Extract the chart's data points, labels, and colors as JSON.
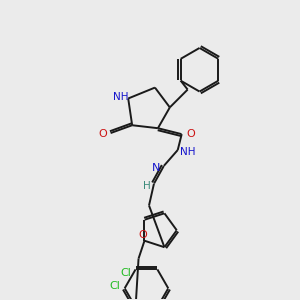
{
  "background_color": "#ebebeb",
  "bond_color": "#1a1a1a",
  "atom_colors": {
    "N": "#1414cc",
    "O": "#cc1414",
    "H": "#3a8a7a",
    "Cl": "#22bb22",
    "C": "#1a1a1a"
  },
  "figsize": [
    3.0,
    3.0
  ],
  "dpi": 100,
  "lw": 1.4,
  "fs": 7.5
}
